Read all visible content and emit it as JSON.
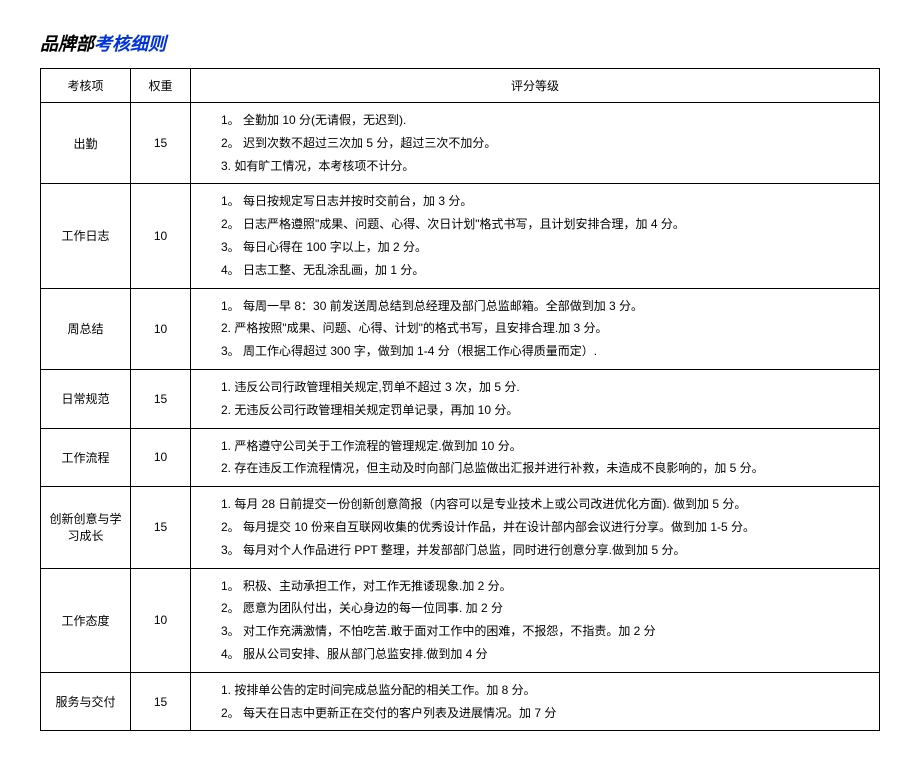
{
  "title_part1": "品牌部",
  "title_part2": "考核细则",
  "headers": {
    "item": "考核项",
    "weight": "权重",
    "criteria": "评分等级"
  },
  "rows": [
    {
      "item": "出勤",
      "weight": "15",
      "criteria": [
        "1。 全勤加 10 分(无请假，无迟到).",
        "2。 迟到次数不超过三次加 5 分，超过三次不加分。",
        "3. 如有旷工情况，本考核项不计分。"
      ]
    },
    {
      "item": "工作日志",
      "weight": "10",
      "criteria": [
        "1。 每日按规定写日志并按时交前台，加 3 分。",
        "2。 日志严格遵照\"成果、问题、心得、次日计划\"格式书写，且计划安排合理，加 4 分。",
        "3。 每日心得在 100 字以上，加 2 分。",
        "4。 日志工整、无乱涂乱画，加 1 分。"
      ]
    },
    {
      "item": "周总结",
      "weight": "10",
      "criteria": [
        "1。 每周一早 8：30 前发送周总结到总经理及部门总监邮箱。全部做到加 3 分。",
        "2. 严格按照\"成果、问题、心得、计划\"的格式书写，且安排合理.加 3 分。",
        "3。 周工作心得超过 300 字，做到加 1-4 分（根据工作心得质量而定）."
      ]
    },
    {
      "item": "日常规范",
      "weight": "15",
      "criteria": [
        "1. 违反公司行政管理相关规定,罚单不超过 3 次，加 5 分.",
        "2. 无违反公司行政管理相关规定罚单记录，再加 10 分。"
      ]
    },
    {
      "item": "工作流程",
      "weight": "10",
      "criteria": [
        "1. 严格遵守公司关于工作流程的管理规定.做到加 10 分。",
        "2. 存在违反工作流程情况，但主动及时向部门总监做出汇报并进行补救，未造成不良影响的，加 5 分。"
      ]
    },
    {
      "item": "创新创意与学习成长",
      "weight": "15",
      "criteria": [
        "1. 每月 28 日前提交一份创新创意简报（内容可以是专业技术上或公司改进优化方面). 做到加 5 分。",
        "2。 每月提交 10 份来自互联网收集的优秀设计作品，并在设计部内部会议进行分享。做到加 1-5 分。",
        "3。 每月对个人作品进行 PPT 整理，并发部部门总监，同时进行创意分享.做到加 5 分。"
      ]
    },
    {
      "item": "工作态度",
      "weight": "10",
      "criteria": [
        "1。 积极、主动承担工作，对工作无推诿现象.加 2 分。",
        "2。 愿意为团队付出，关心身边的每一位同事. 加 2 分",
        "3。 对工作充满激情，不怕吃苦.敢于面对工作中的困难，不报怨，不指责。加 2 分",
        "4。 服从公司安排、服从部门总监安排.做到加 4 分"
      ]
    },
    {
      "item": "服务与交付",
      "weight": "15",
      "criteria": [
        "1. 按排单公告的定时间完成总监分配的相关工作。加 8 分。",
        "2。 每天在日志中更新正在交付的客户列表及进展情况。加 7 分"
      ]
    }
  ]
}
